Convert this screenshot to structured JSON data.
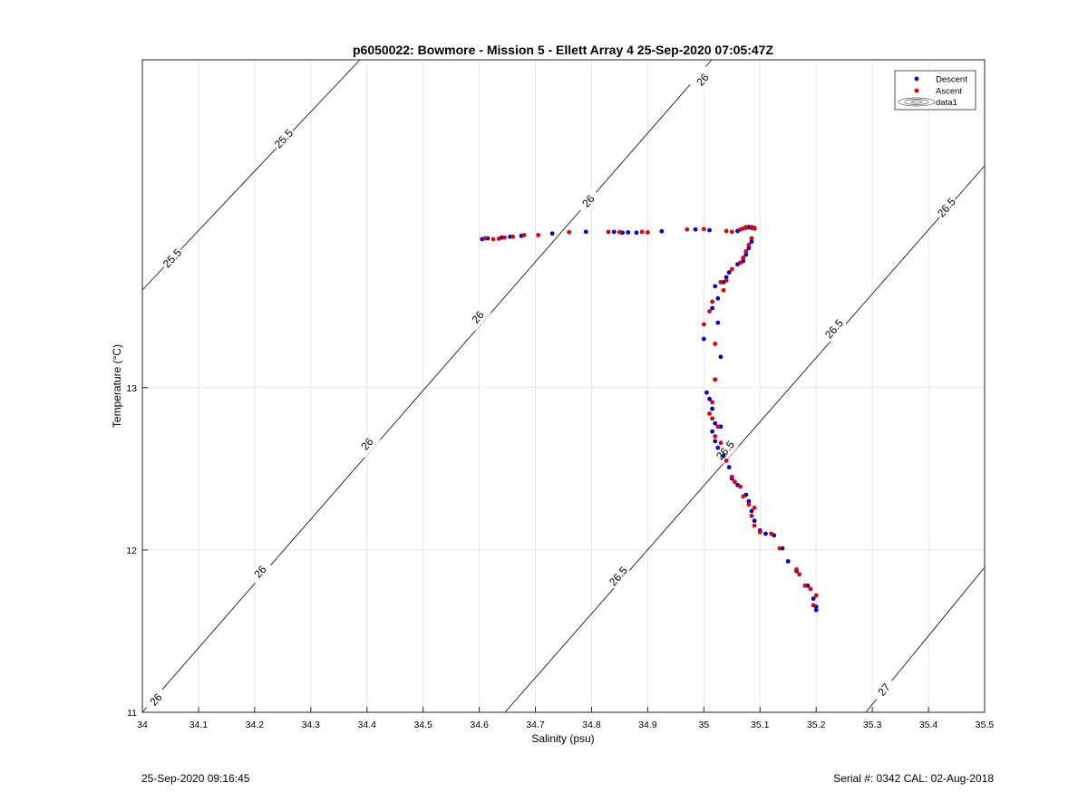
{
  "chart_data": {
    "type": "scatter",
    "title": "p6050022: Bowmore - Mission 5 - Ellett Array 4 25-Sep-2020 07:05:47Z",
    "xlabel": "Salinity (psu)",
    "ylabel": "Temperature (°C)",
    "xlim": [
      34,
      35.5
    ],
    "ylim": [
      11,
      15.02
    ],
    "x_ticks": [
      34,
      34.1,
      34.2,
      34.3,
      34.4,
      34.5,
      34.6,
      34.7,
      34.8,
      34.9,
      35,
      35.1,
      35.2,
      35.3,
      35.4,
      35.5
    ],
    "x_tick_labels": [
      "34",
      "34.1",
      "34.2",
      "34.3",
      "34.4",
      "34.5",
      "34.6",
      "34.7",
      "34.8",
      "34.9",
      "35",
      "35.1",
      "35.2",
      "35.3",
      "35.4",
      "35.5"
    ],
    "y_ticks": [
      11,
      12,
      13
    ],
    "y_tick_labels": [
      "11",
      "12",
      "13"
    ],
    "grid": true,
    "legend_position": "top-right",
    "legend": [
      "Descent",
      "Ascent",
      "data1"
    ],
    "series": [
      {
        "name": "Descent",
        "color": "#0000cc",
        "marker": "circle",
        "points": [
          [
            34.605,
            13.915
          ],
          [
            34.615,
            13.92
          ],
          [
            34.64,
            13.925
          ],
          [
            34.655,
            13.93
          ],
          [
            34.675,
            13.935
          ],
          [
            34.73,
            13.95
          ],
          [
            34.79,
            13.96
          ],
          [
            34.84,
            13.96
          ],
          [
            34.855,
            13.955
          ],
          [
            34.865,
            13.957
          ],
          [
            34.88,
            13.955
          ],
          [
            34.925,
            13.963
          ],
          [
            34.985,
            13.975
          ],
          [
            35.01,
            13.97
          ],
          [
            35.06,
            13.965
          ],
          [
            35.075,
            13.985
          ],
          [
            35.08,
            13.99
          ],
          [
            35.085,
            13.985
          ],
          [
            35.09,
            13.98
          ],
          [
            35.085,
            13.9
          ],
          [
            35.08,
            13.86
          ],
          [
            35.075,
            13.82
          ],
          [
            35.07,
            13.78
          ],
          [
            35.06,
            13.76
          ],
          [
            35.045,
            13.71
          ],
          [
            35.04,
            13.68
          ],
          [
            35.035,
            13.65
          ],
          [
            35.02,
            13.625
          ],
          [
            35.025,
            13.55
          ],
          [
            35.015,
            13.49
          ],
          [
            35.025,
            13.4
          ],
          [
            35.0,
            13.3
          ],
          [
            35.03,
            13.19
          ],
          [
            35.02,
            13.05
          ],
          [
            35.005,
            12.97
          ],
          [
            35.01,
            12.93
          ],
          [
            35.015,
            12.87
          ],
          [
            35.02,
            12.78
          ],
          [
            35.015,
            12.73
          ],
          [
            35.03,
            12.76
          ],
          [
            35.02,
            12.67
          ],
          [
            35.025,
            12.63
          ],
          [
            35.035,
            12.58
          ],
          [
            35.045,
            12.51
          ],
          [
            35.05,
            12.44
          ],
          [
            35.06,
            12.4
          ],
          [
            35.075,
            12.34
          ],
          [
            35.08,
            12.3
          ],
          [
            35.085,
            12.24
          ],
          [
            35.09,
            12.18
          ],
          [
            35.1,
            12.12
          ],
          [
            35.11,
            12.1
          ],
          [
            35.125,
            12.09
          ],
          [
            35.14,
            12.01
          ],
          [
            35.15,
            11.93
          ],
          [
            35.165,
            11.87
          ],
          [
            35.185,
            11.78
          ],
          [
            35.195,
            11.7
          ],
          [
            35.2,
            11.65
          ],
          [
            35.2,
            11.63
          ]
        ]
      },
      {
        "name": "Ascent",
        "color": "#e00000",
        "marker": "circle",
        "points": [
          [
            34.61,
            13.92
          ],
          [
            34.625,
            13.915
          ],
          [
            34.635,
            13.918
          ],
          [
            34.645,
            13.925
          ],
          [
            34.66,
            13.93
          ],
          [
            34.68,
            13.94
          ],
          [
            34.705,
            13.94
          ],
          [
            34.76,
            13.958
          ],
          [
            34.83,
            13.96
          ],
          [
            34.85,
            13.958
          ],
          [
            34.89,
            13.96
          ],
          [
            34.9,
            13.957
          ],
          [
            34.97,
            13.975
          ],
          [
            35.0,
            13.977
          ],
          [
            35.04,
            13.965
          ],
          [
            35.05,
            13.96
          ],
          [
            35.065,
            13.975
          ],
          [
            35.07,
            13.98
          ],
          [
            35.075,
            13.99
          ],
          [
            35.085,
            13.99
          ],
          [
            35.09,
            13.985
          ],
          [
            35.085,
            13.92
          ],
          [
            35.08,
            13.88
          ],
          [
            35.075,
            13.84
          ],
          [
            35.07,
            13.8
          ],
          [
            35.065,
            13.77
          ],
          [
            35.05,
            13.73
          ],
          [
            35.04,
            13.66
          ],
          [
            35.03,
            13.65
          ],
          [
            35.035,
            13.6
          ],
          [
            35.015,
            13.53
          ],
          [
            35.01,
            13.47
          ],
          [
            35.0,
            13.39
          ],
          [
            35.02,
            13.27
          ],
          [
            35.02,
            13.05
          ],
          [
            35.015,
            12.91
          ],
          [
            35.01,
            12.84
          ],
          [
            35.015,
            12.81
          ],
          [
            35.025,
            12.76
          ],
          [
            35.02,
            12.7
          ],
          [
            35.03,
            12.66
          ],
          [
            35.04,
            12.55
          ],
          [
            35.05,
            12.45
          ],
          [
            35.055,
            12.42
          ],
          [
            35.065,
            12.39
          ],
          [
            35.07,
            12.33
          ],
          [
            35.08,
            12.28
          ],
          [
            35.09,
            12.26
          ],
          [
            35.085,
            12.21
          ],
          [
            35.09,
            12.15
          ],
          [
            35.1,
            12.11
          ],
          [
            35.12,
            12.1
          ],
          [
            35.135,
            12.01
          ],
          [
            35.165,
            11.88
          ],
          [
            35.17,
            11.85
          ],
          [
            35.18,
            11.78
          ],
          [
            35.19,
            11.76
          ],
          [
            35.2,
            11.72
          ],
          [
            35.195,
            11.66
          ]
        ]
      }
    ],
    "contour_labels": [
      "25.5",
      "26",
      "26.5",
      "27"
    ]
  },
  "footer": {
    "timestamp": "25-Sep-2020 09:16:45",
    "serial": "Serial #: 0342  CAL: 02-Aug-2018"
  }
}
